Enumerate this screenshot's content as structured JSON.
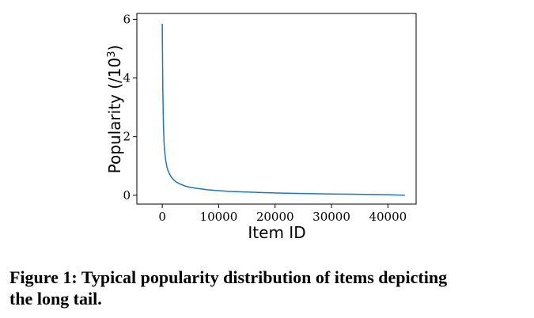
{
  "chart_data": {
    "type": "line",
    "title": "",
    "xlabel": "Item ID",
    "ylabel": "Popularity",
    "ylabel_unit_base": "10",
    "ylabel_unit_exp": "3",
    "xlim": [
      -4500,
      45000
    ],
    "ylim": [
      -0.3,
      6.2
    ],
    "xticks": [
      0,
      10000,
      20000,
      30000,
      40000
    ],
    "yticks": [
      0,
      2,
      4,
      6
    ],
    "xtick_labels": [
      "0",
      "10000",
      "20000",
      "30000",
      "40000"
    ],
    "ytick_labels": [
      "0",
      "2",
      "4",
      "6"
    ],
    "grid": false,
    "series": [
      {
        "name": "popularity",
        "color": "#1f77b4",
        "x": [
          0,
          100,
          200,
          300,
          400,
          600,
          800,
          1000,
          1300,
          1600,
          2000,
          2500,
          3000,
          4000,
          5000,
          6000,
          8000,
          10000,
          12000,
          15000,
          18000,
          21000,
          25000,
          30000,
          35000,
          40000,
          43000
        ],
        "values": [
          5.85,
          3.6,
          2.5,
          1.9,
          1.55,
          1.2,
          1.0,
          0.85,
          0.72,
          0.62,
          0.53,
          0.45,
          0.4,
          0.32,
          0.27,
          0.24,
          0.19,
          0.16,
          0.13,
          0.11,
          0.09,
          0.075,
          0.06,
          0.045,
          0.035,
          0.02,
          0.0
        ]
      }
    ]
  },
  "caption": {
    "line1": "Figure 1: Typical popularity distribution of items depicting",
    "line2": "the long tail."
  }
}
